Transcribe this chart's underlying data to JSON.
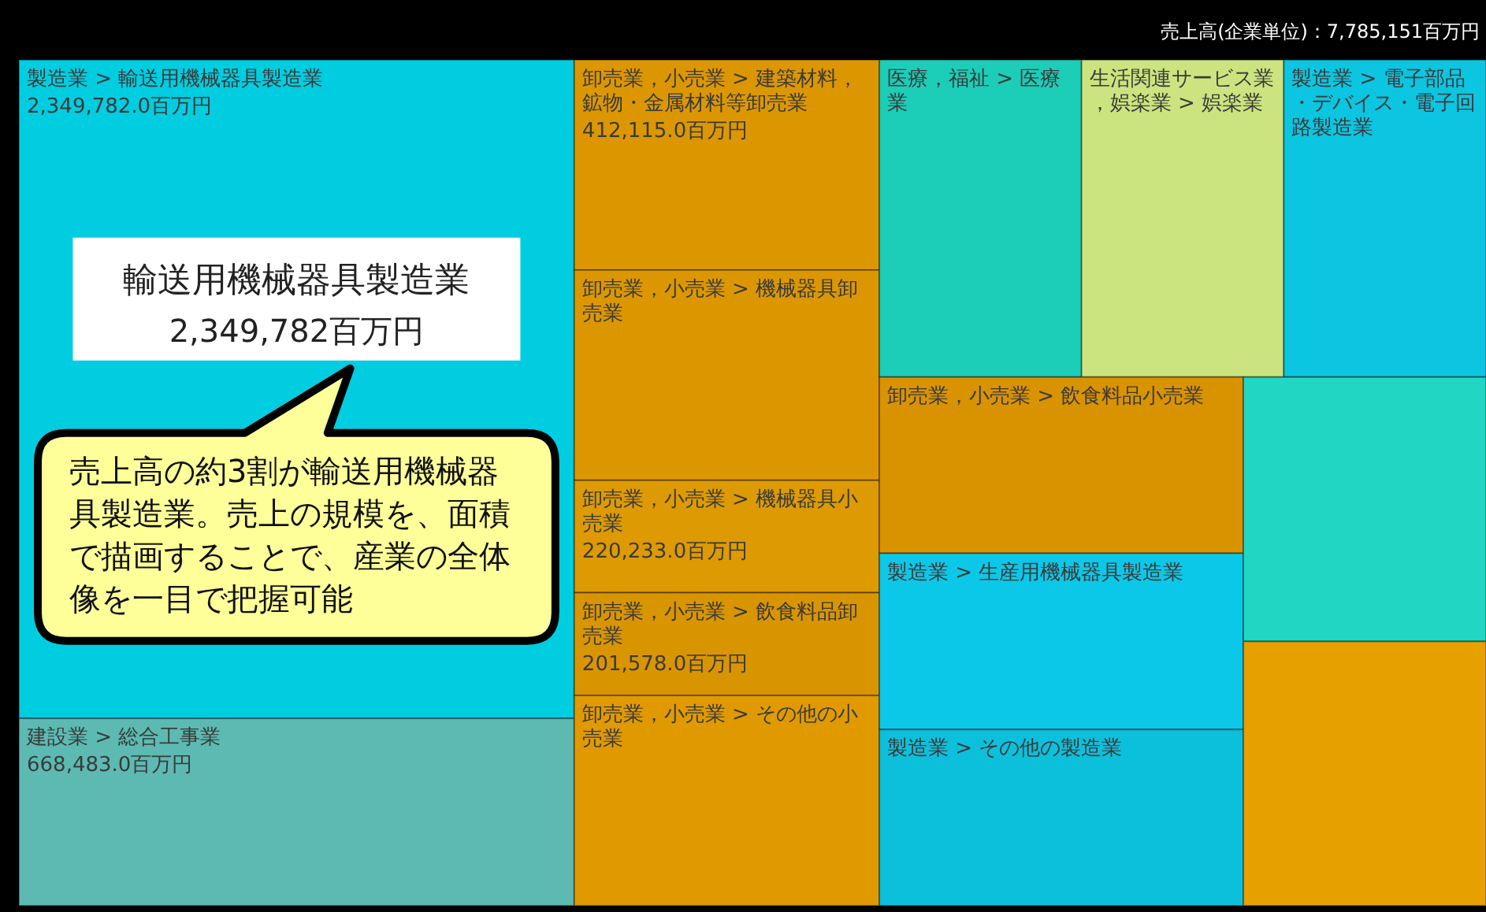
{
  "chart_data": {
    "type": "other",
    "title": "売上高(企業単位)：7,785,151百万円",
    "categories": [
      "製造業 > 輸送用機械器具製造業",
      "建設業 > 総合工事業",
      "卸売業，小売業 > 建築材料，鉱物・金属材料等卸売業",
      "卸売業，小売業 > 機械器具卸売業",
      "卸売業，小売業 > 機械器具小売業",
      "卸売業，小売業 > 飲食料品卸売業",
      "卸売業，小売業 > その他の小売業",
      "医療，福祉 > 医療業",
      "生活関連サービス業，娯楽業 > 娯楽業",
      "製造業 > 電子部品・デバイス・電子回路製造業",
      "卸売業，小売業 > 飲食料品小売業",
      "製造業 > 生産用機械器具製造業",
      "製造業 > その他の製造業",
      null,
      null
    ],
    "values": [
      2349782.0,
      668483.0,
      412115.0,
      null,
      220233.0,
      201578.0,
      null,
      null,
      null,
      null,
      null,
      null,
      null,
      null,
      null
    ],
    "value_labels": [
      "2,349,782.0百万円",
      "668,483.0百万円",
      "412,115.0百万円",
      null,
      "220,233.0百万円",
      "201,578.0百万円",
      null,
      null,
      null,
      null,
      null,
      null,
      null,
      null,
      null
    ],
    "colors": [
      "#00cde0",
      "#5cbab3",
      "#dc9700",
      "#dc9700",
      "#dd9a02",
      "#d99500",
      "#e09a00",
      "#1ccdb8",
      "#cbe47f",
      "#0cc5e0",
      "#d99300",
      "#0cc8e8",
      "#0cc0dc",
      "#22d6c4",
      "#e6a000"
    ],
    "annotations": [
      "輸送用機械器具製造業",
      "2,349,782百万円",
      "売上高の約3割が輸送用機械器具製造業。売上の規模を、面積で描画することで、産業の全体像を一目で把握可能"
    ]
  }
}
